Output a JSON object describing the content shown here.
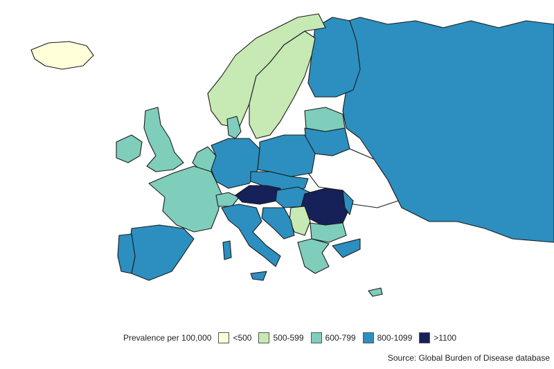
{
  "legend": {
    "title": "Prevalence per 100,000",
    "bins": [
      {
        "label": "<500",
        "color": "#ffffd9"
      },
      {
        "label": "500-599",
        "color": "#c7e9b4"
      },
      {
        "label": "600-799",
        "color": "#7fcdbb"
      },
      {
        "label": "800-1099",
        "color": "#2c8fbf"
      },
      {
        "label": ">1100",
        "color": "#16215a"
      }
    ]
  },
  "source": "Source: Global Burden of Disease database"
}
